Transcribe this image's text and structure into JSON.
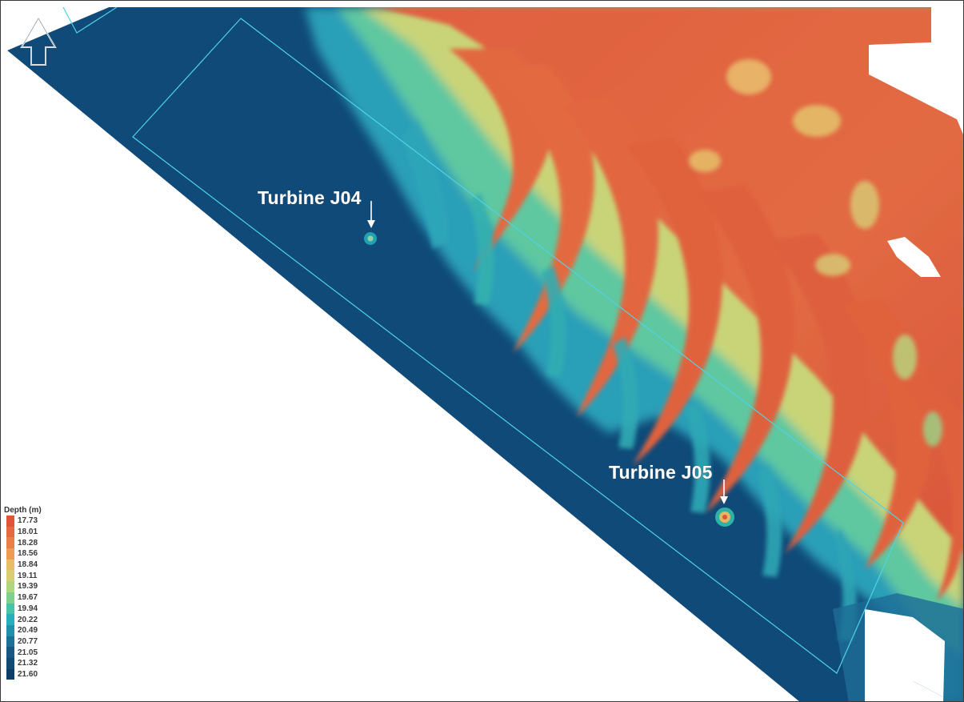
{
  "map": {
    "north_arrow_icon": "north-arrow-icon",
    "turbines": [
      {
        "label": "Turbine J04"
      },
      {
        "label": "Turbine J05"
      }
    ]
  },
  "legend": {
    "title": "Depth (m)",
    "entries": [
      {
        "value": "17.73",
        "color": "#e0543a"
      },
      {
        "value": "18.01",
        "color": "#e56a40"
      },
      {
        "value": "18.28",
        "color": "#ea8048"
      },
      {
        "value": "18.56",
        "color": "#ee9c54"
      },
      {
        "value": "18.84",
        "color": "#e9bd64"
      },
      {
        "value": "19.11",
        "color": "#d8cf73"
      },
      {
        "value": "19.39",
        "color": "#b2d67e"
      },
      {
        "value": "19.67",
        "color": "#7fd08e"
      },
      {
        "value": "19.94",
        "color": "#45c4a8"
      },
      {
        "value": "20.22",
        "color": "#26aebb"
      },
      {
        "value": "20.49",
        "color": "#2190ac"
      },
      {
        "value": "20.77",
        "color": "#1b7198"
      },
      {
        "value": "21.05",
        "color": "#165882"
      },
      {
        "value": "21.32",
        "color": "#124a73"
      },
      {
        "value": "21.60",
        "color": "#0e3d68"
      }
    ]
  },
  "colors": {
    "deep": "#0f4a78",
    "shallow": "#e0603f",
    "boundary_line": "#4fd3e6",
    "background": "#ffffff"
  }
}
